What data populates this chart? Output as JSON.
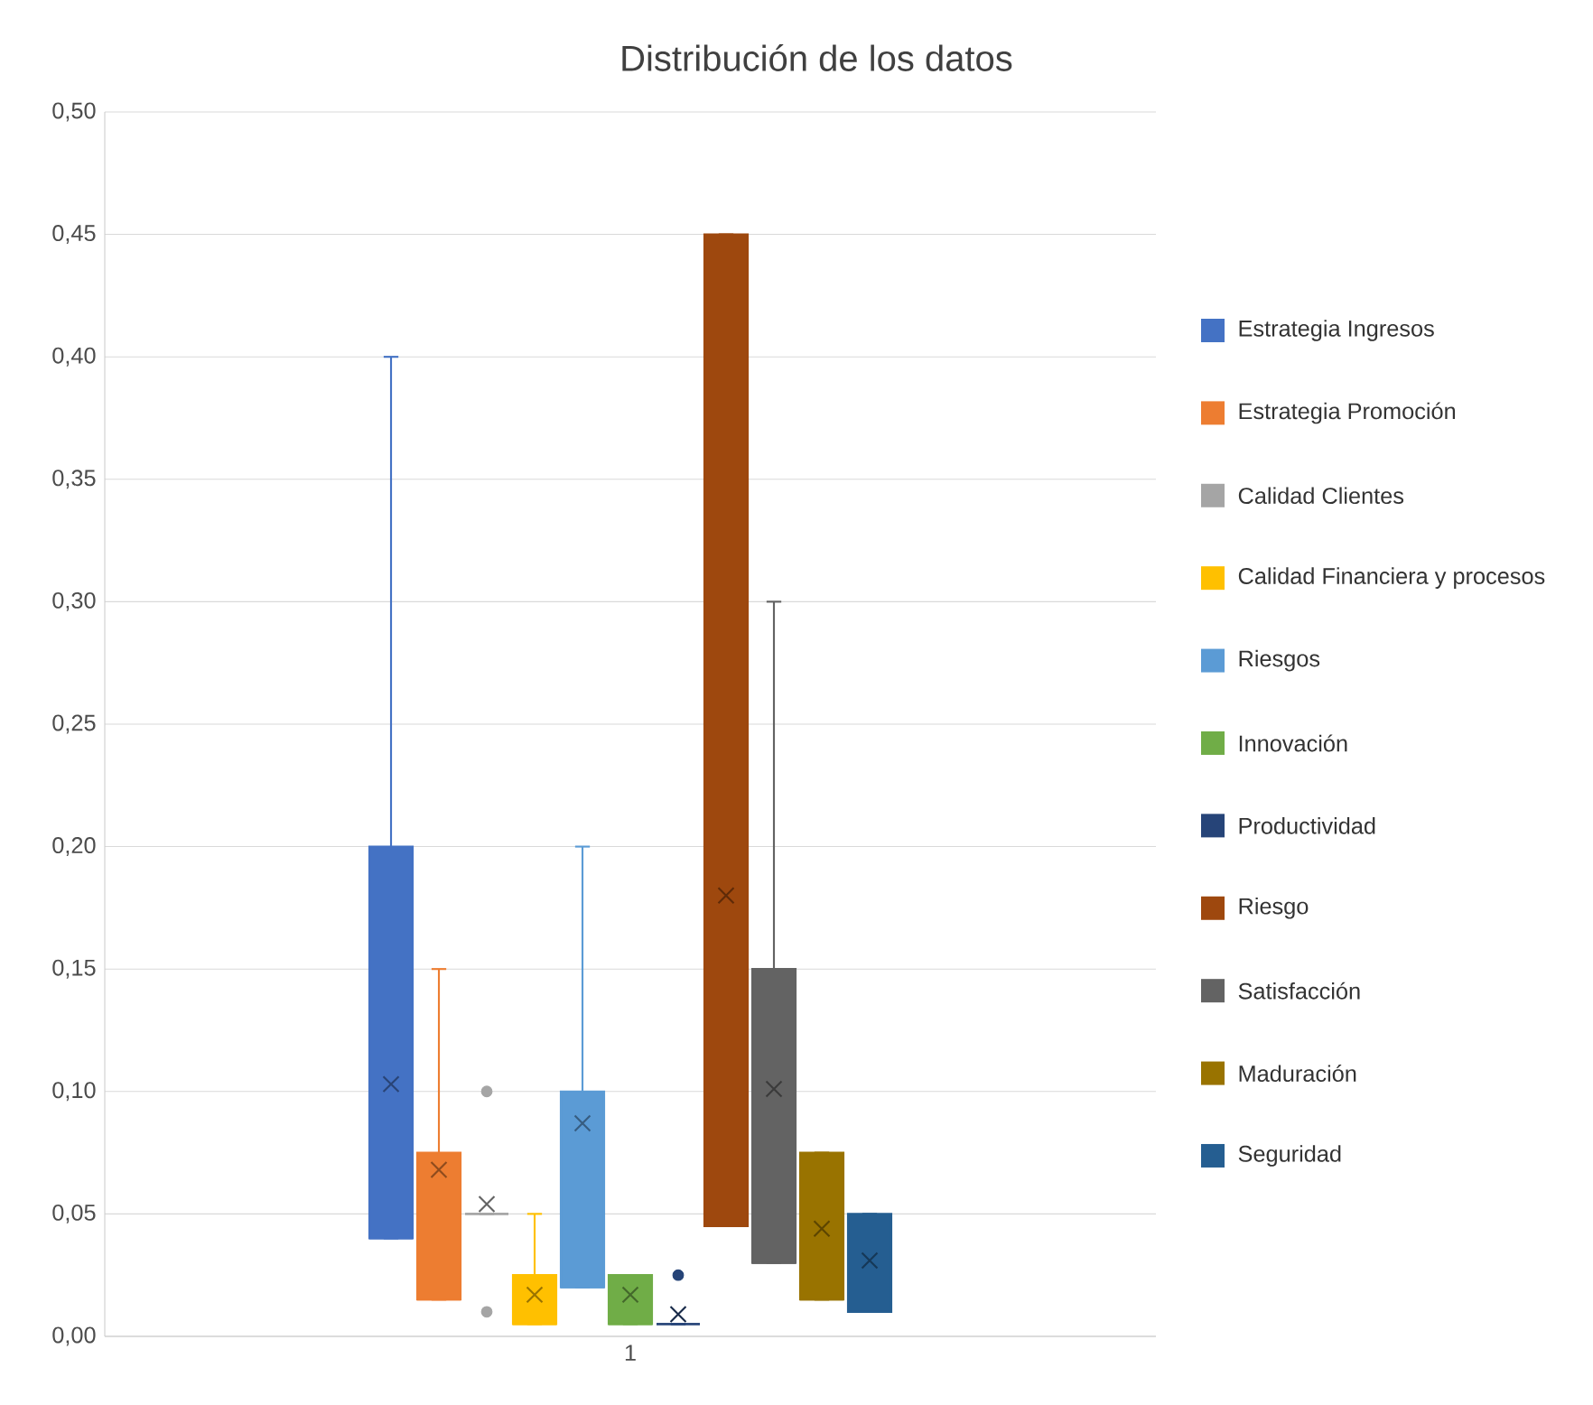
{
  "chart_data": {
    "type": "box",
    "title": "Distribución de los datos",
    "categories": [
      "1"
    ],
    "ylim": [
      0,
      0.5
    ],
    "yticks": [
      {
        "value": 0,
        "label": "0,00"
      },
      {
        "value": 0.05,
        "label": "0,05"
      },
      {
        "value": 0.1,
        "label": "0,10"
      },
      {
        "value": 0.15,
        "label": "0,15"
      },
      {
        "value": 0.2,
        "label": "0,20"
      },
      {
        "value": 0.25,
        "label": "0,25"
      },
      {
        "value": 0.3,
        "label": "0,30"
      },
      {
        "value": 0.35,
        "label": "0,35"
      },
      {
        "value": 0.4,
        "label": "0,40"
      },
      {
        "value": 0.45,
        "label": "0,45"
      },
      {
        "value": 0.5,
        "label": "0,50"
      }
    ],
    "grid": "y",
    "legend": "right",
    "series": [
      {
        "name": "Estrategia Ingresos",
        "color": "#4472c4",
        "boxes": [
          {
            "low": 0.04,
            "q1": 0.04,
            "median": 0.04,
            "q3": 0.2,
            "high": 0.4,
            "mean": 0.103
          }
        ]
      },
      {
        "name": "Estrategia Promoción",
        "color": "#ed7d31",
        "boxes": [
          {
            "low": 0.015,
            "q1": 0.015,
            "median": 0.015,
            "q3": 0.075,
            "high": 0.15,
            "mean": 0.068
          }
        ]
      },
      {
        "name": "Calidad Clientes",
        "color": "#a5a5a5",
        "boxes": [
          {
            "low": 0.05,
            "q1": 0.05,
            "median": 0.05,
            "q3": 0.05,
            "high": 0.05,
            "mean": 0.054,
            "outliers": [
              0.1,
              0.01
            ]
          }
        ]
      },
      {
        "name": "Calidad Financiera y procesos",
        "color": "#ffc000",
        "boxes": [
          {
            "low": 0.005,
            "q1": 0.005,
            "median": 0.005,
            "q3": 0.025,
            "high": 0.05,
            "mean": 0.017
          }
        ]
      },
      {
        "name": "Riesgos",
        "color": "#5b9bd5",
        "boxes": [
          {
            "low": 0.02,
            "q1": 0.02,
            "median": 0.02,
            "q3": 0.1,
            "high": 0.2,
            "mean": 0.087
          }
        ]
      },
      {
        "name": "Innovación",
        "color": "#70ad47",
        "boxes": [
          {
            "low": 0.005,
            "q1": 0.005,
            "median": 0.005,
            "q3": 0.025,
            "high": 0.025,
            "mean": 0.017
          }
        ]
      },
      {
        "name": "Productividad",
        "color": "#264478",
        "boxes": [
          {
            "low": 0.005,
            "q1": 0.005,
            "median": 0.005,
            "q3": 0.005,
            "high": 0.005,
            "mean": 0.009,
            "outliers": [
              0.025
            ]
          }
        ]
      },
      {
        "name": "Riesgo",
        "color": "#9e480e",
        "boxes": [
          {
            "low": 0.045,
            "q1": 0.045,
            "median": 0.045,
            "q3": 0.45,
            "high": 0.45,
            "mean": 0.18
          }
        ]
      },
      {
        "name": "Satisfacción",
        "color": "#636363",
        "boxes": [
          {
            "low": 0.03,
            "q1": 0.03,
            "median": 0.03,
            "q3": 0.15,
            "high": 0.3,
            "mean": 0.101
          }
        ]
      },
      {
        "name": "Maduración",
        "color": "#997300",
        "boxes": [
          {
            "low": 0.015,
            "q1": 0.015,
            "median": 0.015,
            "q3": 0.075,
            "high": 0.075,
            "mean": 0.044
          }
        ]
      },
      {
        "name": "Seguridad",
        "color": "#255e91",
        "boxes": [
          {
            "low": 0.01,
            "q1": 0.01,
            "median": 0.01,
            "q3": 0.05,
            "high": 0.05,
            "mean": 0.031
          }
        ]
      }
    ]
  }
}
